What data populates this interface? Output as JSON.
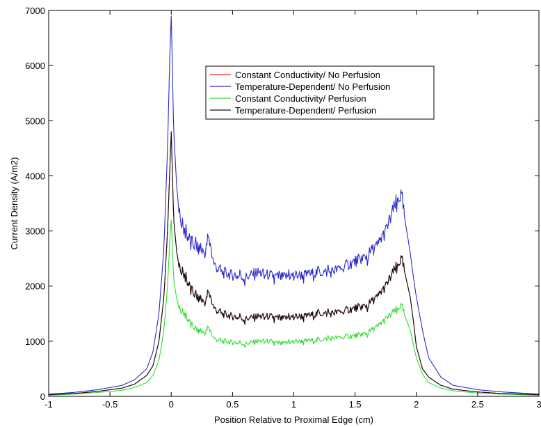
{
  "chart_data": {
    "type": "line",
    "xlabel": "Position Relative to Proximal Edge (cm)",
    "ylabel": "Current Density (A/m2)",
    "xlim": [
      -1,
      3
    ],
    "ylim": [
      0,
      7000
    ],
    "xticks": [
      "-1",
      "-0.5",
      "0",
      "0.5",
      "1",
      "1.5",
      "2",
      "2.5",
      "3"
    ],
    "yticks": [
      "0",
      "1000",
      "2000",
      "3000",
      "4000",
      "5000",
      "6000",
      "7000"
    ],
    "grid": false,
    "legend_position": "top-center",
    "x": [
      -1.0,
      -0.8,
      -0.6,
      -0.4,
      -0.3,
      -0.2,
      -0.15,
      -0.1,
      -0.06,
      -0.03,
      -0.01,
      0.0,
      0.02,
      0.05,
      0.1,
      0.2,
      0.28,
      0.3,
      0.35,
      0.4,
      0.5,
      0.6,
      0.7,
      0.8,
      0.9,
      1.0,
      1.1,
      1.2,
      1.3,
      1.4,
      1.5,
      1.6,
      1.7,
      1.75,
      1.8,
      1.85,
      1.88,
      1.9,
      1.95,
      1.98,
      2.0,
      2.05,
      2.1,
      2.2,
      2.3,
      2.5,
      2.7,
      3.0
    ],
    "series": [
      {
        "name": "Constant Conductivity/ No Perfusion",
        "color": "#e02020",
        "values": [
          30,
          50,
          90,
          150,
          220,
          380,
          550,
          1000,
          1800,
          3000,
          4200,
          4800,
          3200,
          2500,
          2200,
          1800,
          1700,
          1900,
          1600,
          1500,
          1450,
          1400,
          1450,
          1450,
          1400,
          1450,
          1450,
          1500,
          1500,
          1550,
          1600,
          1650,
          1850,
          2000,
          2200,
          2400,
          2500,
          2300,
          1800,
          1300,
          900,
          500,
          350,
          200,
          130,
          80,
          50,
          30
        ]
      },
      {
        "name": "Temperature-Dependent/ No Perfusion",
        "color": "#2a2acc",
        "values": [
          40,
          70,
          120,
          200,
          300,
          500,
          800,
          1500,
          2700,
          4500,
          6300,
          6900,
          4800,
          3600,
          3000,
          2700,
          2600,
          2900,
          2400,
          2250,
          2200,
          2150,
          2250,
          2200,
          2150,
          2200,
          2200,
          2250,
          2250,
          2350,
          2450,
          2550,
          2800,
          3000,
          3300,
          3600,
          3650,
          3300,
          2600,
          2100,
          1800,
          1200,
          700,
          350,
          200,
          120,
          80,
          40
        ]
      },
      {
        "name": "Constant Conductivity/ Perfusion",
        "color": "#33dd33",
        "values": [
          20,
          40,
          70,
          110,
          160,
          250,
          380,
          650,
          1200,
          2000,
          2900,
          3200,
          2100,
          1700,
          1500,
          1200,
          1150,
          1250,
          1050,
          1000,
          980,
          950,
          1000,
          1000,
          950,
          1000,
          1000,
          1020,
          1050,
          1080,
          1100,
          1150,
          1300,
          1400,
          1500,
          1600,
          1650,
          1500,
          1200,
          900,
          700,
          400,
          250,
          150,
          100,
          60,
          40,
          20
        ]
      },
      {
        "name": "Temperature-Dependent/ Perfusion",
        "color": "#111111",
        "values": [
          30,
          50,
          90,
          150,
          220,
          380,
          550,
          1000,
          1800,
          3000,
          4200,
          4800,
          3200,
          2500,
          2200,
          1800,
          1700,
          1900,
          1600,
          1500,
          1450,
          1400,
          1450,
          1450,
          1400,
          1450,
          1450,
          1500,
          1500,
          1550,
          1600,
          1650,
          1850,
          2000,
          2200,
          2400,
          2500,
          2300,
          1800,
          1300,
          900,
          500,
          350,
          200,
          130,
          80,
          50,
          30
        ]
      }
    ]
  }
}
